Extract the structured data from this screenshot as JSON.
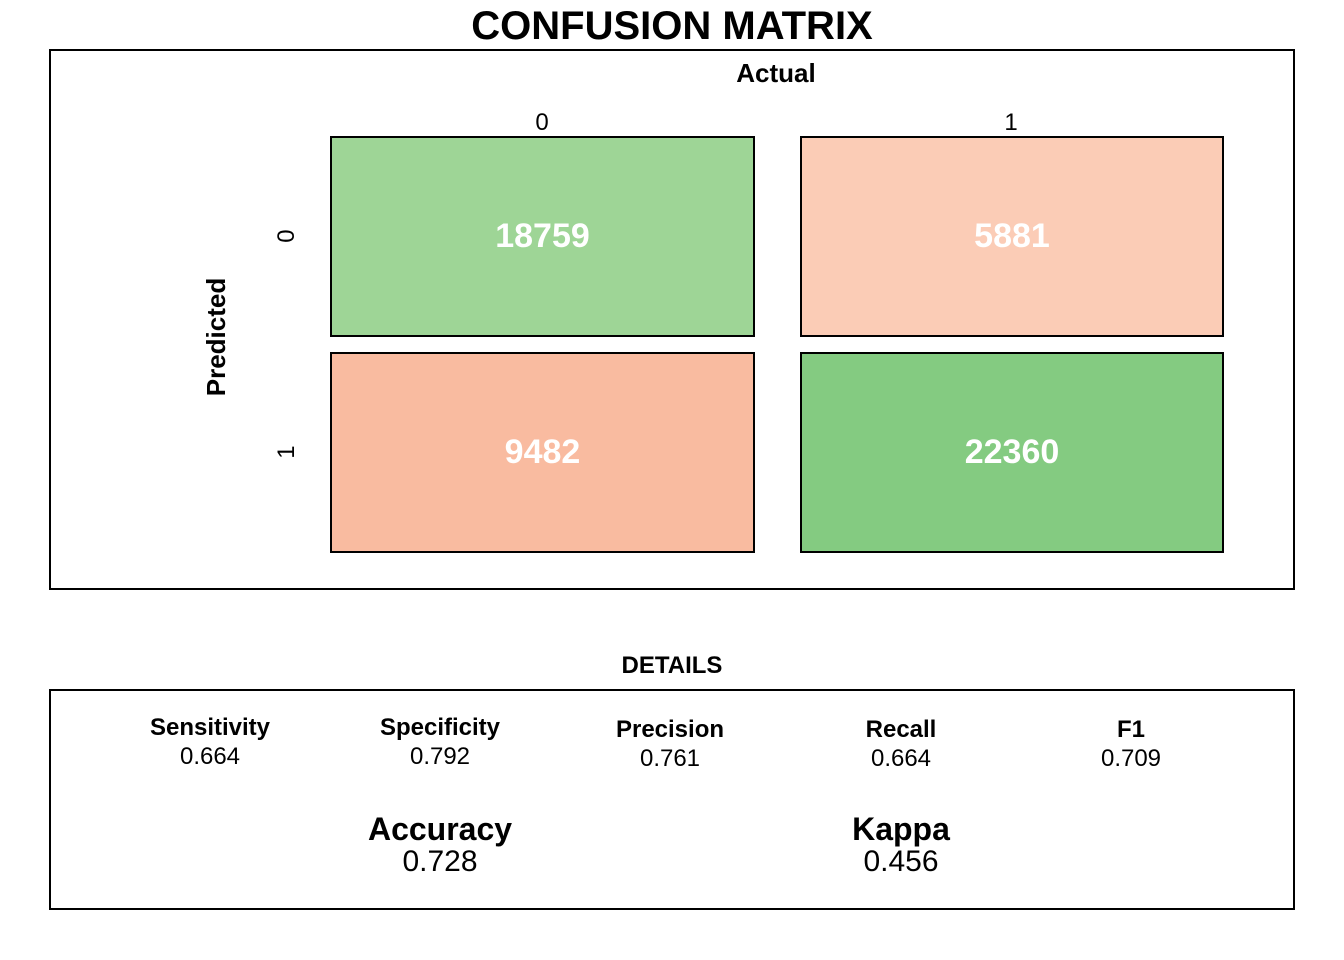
{
  "chart_data": {
    "type": "table",
    "title": "CONFUSION MATRIX",
    "xlabel": "Actual",
    "ylabel": "Predicted",
    "column_labels": [
      "0",
      "1"
    ],
    "row_labels": [
      "0",
      "1"
    ],
    "cells": [
      {
        "predicted": "0",
        "actual": "0",
        "value": 18759,
        "display": "18759",
        "color": "#9ED596"
      },
      {
        "predicted": "0",
        "actual": "1",
        "value": 5881,
        "display": "5881",
        "color": "#FBCCB6"
      },
      {
        "predicted": "1",
        "actual": "0",
        "value": 9482,
        "display": "9482",
        "color": "#F9BBA0"
      },
      {
        "predicted": "1",
        "actual": "1",
        "value": 22360,
        "display": "22360",
        "color": "#84CB81"
      }
    ],
    "details_title": "DETAILS",
    "metrics": [
      {
        "name": "Sensitivity",
        "value": "0.664"
      },
      {
        "name": "Specificity",
        "value": "0.792"
      },
      {
        "name": "Precision",
        "value": "0.761"
      },
      {
        "name": "Recall",
        "value": "0.664"
      },
      {
        "name": "F1",
        "value": "0.709"
      }
    ],
    "summary": [
      {
        "name": "Accuracy",
        "value": "0.728"
      },
      {
        "name": "Kappa",
        "value": "0.456"
      }
    ]
  }
}
